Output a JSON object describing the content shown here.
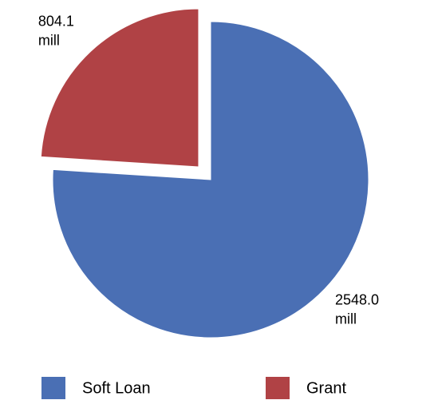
{
  "chart_data": {
    "type": "pie",
    "categories": [
      "Soft Loan",
      "Grant"
    ],
    "values": [
      2548.0,
      804.1
    ],
    "value_labels": [
      "2548.0 mill",
      "804.1 mill"
    ],
    "colors": [
      "#4a6fb4",
      "#b04245"
    ],
    "exploded": [
      false,
      true
    ],
    "legend": "bottom"
  }
}
